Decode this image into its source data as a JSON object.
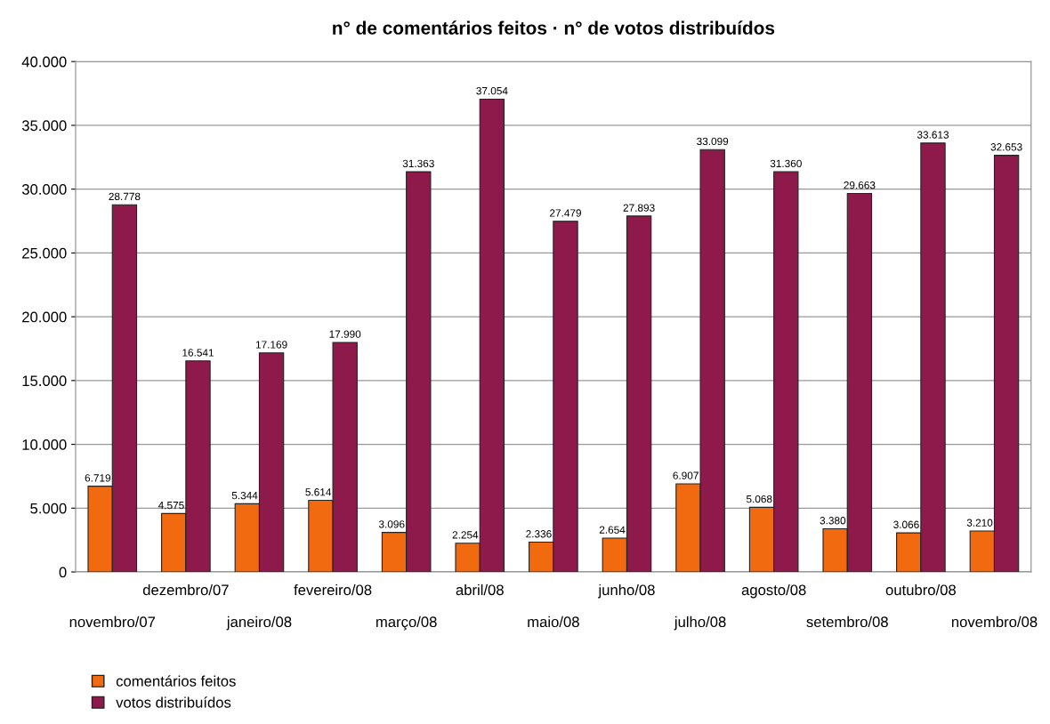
{
  "chart_data": {
    "type": "bar",
    "title": "n° de comentários feitos · n° de votos distribuídos",
    "categories": [
      "novembro/07",
      "dezembro/07",
      "janeiro/08",
      "fevereiro/08",
      "março/08",
      "abril/08",
      "maio/08",
      "junho/08",
      "julho/08",
      "agosto/08",
      "setembro/08",
      "outubro/08",
      "novembro/08"
    ],
    "series": [
      {
        "name": "comentários feitos",
        "color": "#f26a10",
        "values": [
          6719,
          4575,
          5344,
          5614,
          3096,
          2254,
          2336,
          2654,
          6907,
          5068,
          3380,
          3066,
          3210
        ],
        "value_labels": [
          "6.719",
          "4.575",
          "5.344",
          "5.614",
          "3.096",
          "2.254",
          "2.336",
          "2.654",
          "6.907",
          "5.068",
          "3.380",
          "3.066",
          "3.210"
        ]
      },
      {
        "name": "votos distribuídos",
        "color": "#8e1a4c",
        "values": [
          28778,
          16541,
          17169,
          17990,
          31363,
          37054,
          27479,
          27893,
          33099,
          31360,
          29663,
          33613,
          32653
        ],
        "value_labels": [
          "28.778",
          "16.541",
          "17.169",
          "17.990",
          "31.363",
          "37.054",
          "27.479",
          "27.893",
          "33.099",
          "31.360",
          "29.663",
          "33.613",
          "32.653"
        ]
      }
    ],
    "ylim": [
      0,
      40000
    ],
    "yticks": [
      0,
      {
        "value": 5000,
        "label": "5.000"
      },
      {
        "value": 10000,
        "label": "10.000"
      },
      {
        "value": 15000,
        "label": "15.000"
      },
      {
        "value": 20000,
        "label": "20.000"
      },
      {
        "value": 25000,
        "label": "25.000"
      },
      {
        "value": 30000,
        "label": "30.000"
      },
      {
        "value": 35000,
        "label": "35.000"
      },
      {
        "value": 40000,
        "label": "40.000"
      }
    ],
    "grid": "y",
    "legend": "bottom left"
  }
}
